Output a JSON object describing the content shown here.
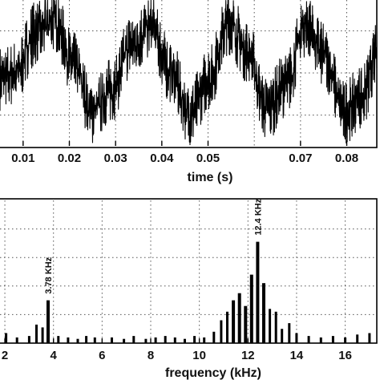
{
  "chart_data": [
    {
      "type": "line",
      "title": "",
      "xlabel": "time (s)",
      "ylabel": "",
      "xlim": [
        0.005,
        0.0865
      ],
      "ylim": [
        -1.3,
        1.3
      ],
      "x_ticks": [
        "0.01",
        "0.02",
        "0.03",
        "0.04",
        "0.05",
        "0.07",
        "0.08"
      ],
      "x_tick_values": [
        0.01,
        0.02,
        0.03,
        0.04,
        0.05,
        0.07,
        0.08
      ],
      "grid": true,
      "series": [
        {
          "period_s": 0.0167,
          "x": [
            0.005,
            0.0085,
            0.0125,
            0.0167,
            0.021,
            0.025,
            0.0292,
            0.0334,
            0.0376,
            0.0418,
            0.046,
            0.0502,
            0.0544,
            0.0585,
            0.0627,
            0.0669,
            0.0711,
            0.0752,
            0.0794,
            0.0836,
            0.0865
          ],
          "values": [
            -0.1,
            0.0,
            0.7,
            0.95,
            0.15,
            -0.7,
            -0.3,
            0.5,
            0.8,
            0.05,
            -0.75,
            -0.1,
            0.9,
            0.4,
            -0.65,
            -0.2,
            0.85,
            0.3,
            -0.7,
            -0.4,
            0.3
          ]
        }
      ]
    },
    {
      "type": "bar",
      "title": "",
      "xlabel": "frequency (kHz)",
      "ylabel": "",
      "xlim": [
        1.8,
        17.3
      ],
      "ylim": [
        0,
        1
      ],
      "x_ticks": [
        "2",
        "4",
        "6",
        "8",
        "10",
        "12",
        "14",
        "16"
      ],
      "x_tick_values": [
        2,
        4,
        6,
        8,
        10,
        12,
        14,
        16
      ],
      "grid": true,
      "x": [
        2.05,
        2.5,
        3.0,
        3.3,
        3.55,
        3.78,
        4.2,
        4.6,
        5.0,
        5.35,
        5.7,
        6.4,
        6.9,
        7.3,
        7.8,
        8.2,
        8.6,
        9.0,
        9.4,
        9.8,
        10.2,
        10.6,
        10.9,
        11.15,
        11.4,
        11.65,
        11.9,
        12.15,
        12.4,
        12.65,
        12.9,
        13.15,
        13.4,
        13.7,
        14.0,
        14.5,
        15.0,
        15.5,
        16.0,
        16.5,
        17.0
      ],
      "values": [
        0.07,
        0.04,
        0.05,
        0.13,
        0.11,
        0.3,
        0.05,
        0.04,
        0.03,
        0.05,
        0.04,
        0.04,
        0.03,
        0.05,
        0.03,
        0.04,
        0.05,
        0.04,
        0.03,
        0.05,
        0.04,
        0.08,
        0.16,
        0.22,
        0.3,
        0.35,
        0.26,
        0.48,
        0.71,
        0.42,
        0.24,
        0.22,
        0.1,
        0.14,
        0.07,
        0.05,
        0.04,
        0.05,
        0.04,
        0.06,
        0.07
      ],
      "annotations": [
        {
          "text": "3.78 KHz",
          "x": 3.78
        },
        {
          "text": "12.4 KHz",
          "x": 12.4
        }
      ]
    }
  ]
}
